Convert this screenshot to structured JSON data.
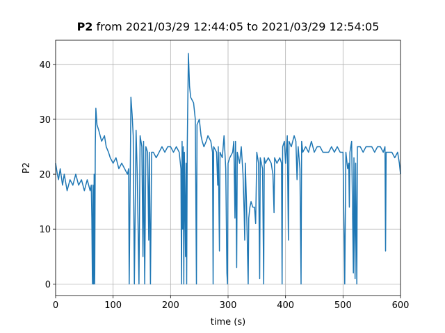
{
  "chart_data": {
    "type": "line",
    "title_prefix": "P2",
    "title": "from 2021/03/29 12:44:05 to 2021/03/29 12:54:05",
    "xlabel": "time (s)",
    "ylabel": "P2",
    "color": "#1f77b4",
    "grid": true,
    "xlim": [
      0,
      600
    ],
    "ylim": [
      -2.1,
      44.4
    ],
    "xticks": [
      0,
      100,
      200,
      300,
      400,
      500,
      600
    ],
    "yticks": [
      0,
      10,
      20,
      30,
      40
    ],
    "x": [
      0,
      3,
      5,
      8,
      12,
      15,
      20,
      25,
      30,
      35,
      40,
      45,
      50,
      55,
      60,
      62,
      63,
      64,
      65,
      66,
      67,
      68,
      69,
      70,
      72,
      75,
      80,
      85,
      88,
      92,
      95,
      100,
      105,
      110,
      115,
      120,
      125,
      127,
      128,
      130,
      131,
      133,
      135,
      137,
      140,
      142,
      145,
      147,
      150,
      152,
      153,
      155,
      157,
      160,
      162,
      163,
      165,
      167,
      170,
      175,
      180,
      185,
      190,
      195,
      200,
      205,
      210,
      215,
      218,
      219,
      220,
      221,
      222,
      223,
      224,
      226,
      227,
      228,
      229,
      231,
      233,
      235,
      240,
      243,
      245,
      246,
      250,
      253,
      255,
      258,
      262,
      265,
      270,
      273,
      274,
      275,
      280,
      282,
      283,
      285,
      286,
      290,
      293,
      296,
      298,
      299,
      300,
      303,
      308,
      310,
      312,
      313,
      315,
      316,
      320,
      323,
      326,
      328,
      329,
      330,
      332,
      335,
      336,
      338,
      340,
      343,
      346,
      348,
      350,
      353,
      355,
      356,
      360,
      362,
      363,
      365,
      370,
      375,
      378,
      380,
      381,
      385,
      390,
      393,
      394,
      395,
      398,
      400,
      403,
      405,
      406,
      410,
      415,
      418,
      420,
      422,
      425,
      427,
      428,
      430,
      435,
      440,
      445,
      450,
      455,
      460,
      465,
      470,
      475,
      480,
      485,
      490,
      495,
      500,
      503,
      505,
      508,
      510,
      511,
      512,
      515,
      518,
      519,
      521,
      522,
      524,
      525,
      530,
      535,
      540,
      545,
      550,
      555,
      560,
      565,
      570,
      573,
      574,
      575,
      580,
      585,
      590,
      595,
      598,
      600
    ],
    "values": [
      22,
      20,
      19,
      21,
      18,
      20,
      17,
      19,
      18,
      20,
      18,
      19,
      17,
      19,
      17,
      18,
      12,
      0,
      18,
      0,
      20,
      0,
      25,
      32,
      29,
      28,
      26,
      27,
      25,
      24,
      23,
      22,
      23,
      21,
      22,
      21,
      20,
      21,
      0,
      22,
      34,
      31,
      27,
      0,
      28,
      20,
      0,
      27,
      25,
      5,
      26,
      0,
      25,
      24,
      8,
      24,
      0,
      24,
      24,
      23,
      24,
      25,
      24,
      25,
      25,
      24,
      25,
      24,
      21,
      0,
      26,
      10,
      25,
      0,
      24,
      5,
      22,
      0,
      25,
      42,
      36,
      34,
      33,
      30,
      0,
      29,
      30,
      27,
      26,
      25,
      26,
      27,
      26,
      24,
      0,
      25,
      24,
      18,
      25,
      6,
      24,
      23,
      27,
      21,
      2,
      0,
      22,
      23,
      24,
      26,
      12,
      26,
      3,
      24,
      22,
      25,
      20,
      13,
      8,
      22,
      15,
      0,
      12,
      14,
      15,
      14,
      14,
      11,
      24,
      22,
      1,
      23,
      21,
      0,
      23,
      22,
      23,
      22,
      20,
      13,
      23,
      22,
      23,
      22,
      0,
      25,
      26,
      22,
      27,
      8,
      26,
      25,
      27,
      26,
      19,
      25,
      21,
      0,
      26,
      24,
      25,
      24,
      26,
      24,
      25,
      25,
      24,
      24,
      24,
      25,
      24,
      25,
      24,
      24,
      0,
      24,
      21,
      22,
      14,
      24,
      26,
      2,
      23,
      1,
      22,
      0,
      25,
      25,
      24,
      25,
      25,
      25,
      24,
      25,
      25,
      24,
      25,
      6,
      24,
      24,
      24,
      23,
      24,
      22,
      20
    ]
  }
}
